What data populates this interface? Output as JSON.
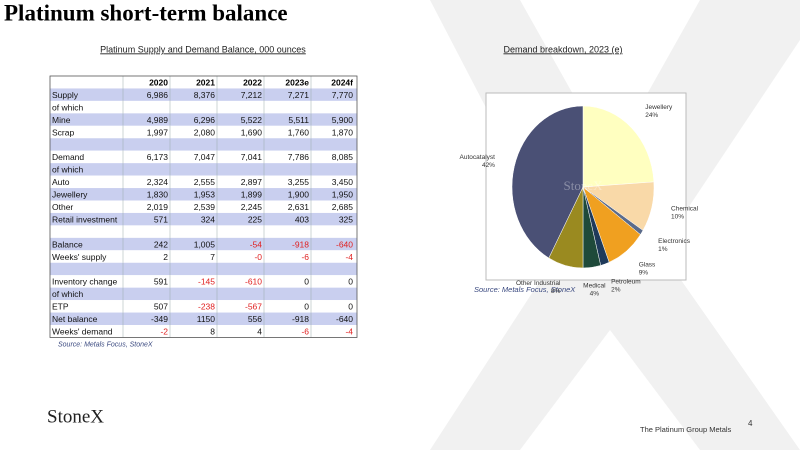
{
  "title": "Platinum short-term balance",
  "table": {
    "title": "Platinum Supply and Demand Balance,  000 ounces",
    "header": [
      null,
      "2020",
      "2021",
      "2022",
      "2023e",
      "2024f"
    ],
    "sections": [
      {
        "rows": [
          {
            "cells": [
              "Supply",
              "6,986",
              "8,376",
              "7,212",
              "7,271",
              "7,770"
            ]
          },
          {
            "cells": [
              "of which"
            ]
          },
          {
            "cells": [
              "Mine",
              "4,989",
              "6,296",
              "5,522",
              "5,511",
              "5,900"
            ]
          },
          {
            "cells": [
              "Scrap",
              "1,997",
              "2,080",
              "1,690",
              "1,760",
              "1,870"
            ]
          }
        ]
      },
      {
        "rows": [
          {
            "cells": [
              "Demand",
              "6,173",
              "7,047",
              "7,041",
              "7,786",
              "8,085"
            ]
          },
          {
            "cells": [
              "of which"
            ]
          },
          {
            "cells": [
              "Auto",
              "2,324",
              "2,555",
              "2,897",
              "3,255",
              "3,450"
            ]
          },
          {
            "cells": [
              "Jewellery",
              "1,830",
              "1,953",
              "1,899",
              "1,900",
              "1,950"
            ]
          },
          {
            "cells": [
              "Other",
              "2,019",
              "2,539",
              "2,245",
              "2,631",
              "2,685"
            ]
          },
          {
            "cells": [
              "Retail investment",
              "571",
              "324",
              "225",
              "403",
              "325"
            ]
          }
        ]
      },
      {
        "rows": [
          {
            "cells": [
              "Balance",
              "242",
              "1,005",
              "-54",
              "-918",
              "-640"
            ],
            "negative_red": true
          },
          {
            "cells": [
              "Weeks' supply",
              "2",
              "7",
              "-0",
              "-6",
              "-4"
            ],
            "negative_red": true
          }
        ]
      },
      {
        "rows": [
          {
            "cells": [
              "Inventory change",
              "591",
              "-145",
              "-610",
              "0",
              "0"
            ],
            "negative_red": true
          },
          {
            "cells": [
              "of which"
            ]
          },
          {
            "cells": [
              "ETP",
              "507",
              "-238",
              "-567",
              "0",
              "0"
            ],
            "negative_red": true
          },
          {
            "cells": [
              "Net balance",
              "-349",
              "1150",
              "556",
              "-918",
              "-640"
            ],
            "negative_red": false
          },
          {
            "cells": [
              "Weeks' demand",
              "-2",
              "8",
              "4",
              "-6",
              "-4"
            ],
            "negative_red": true
          }
        ]
      }
    ],
    "source": "Source: Metals Focus, StoneX"
  },
  "chart_data": {
    "type": "pie",
    "title": "Demand breakdown, 2023 (e)",
    "categories": [
      "Jewellery",
      "Chemical",
      "Electronics",
      "Glass",
      "Petroleum",
      "Medical",
      "Other Industrial",
      "Autocatalyst"
    ],
    "values": [
      24,
      10,
      1,
      9,
      2,
      4,
      8,
      42
    ],
    "value_labels": [
      "24%",
      "10%",
      "1%",
      "9%",
      "2%",
      "4%",
      "8%",
      "42%"
    ],
    "colors": [
      "#ffffc0",
      "#f9d9a8",
      "#5b6b8a",
      "#f0a020",
      "#1f3a5a",
      "#1f4a3a",
      "#9a8a20",
      "#4a5075"
    ],
    "watermark": "StoneX",
    "source": "Source: Metals Focus, StoneX"
  },
  "logo": "StoneX",
  "footer": "The Platinum Group Metals",
  "page_number": "4"
}
